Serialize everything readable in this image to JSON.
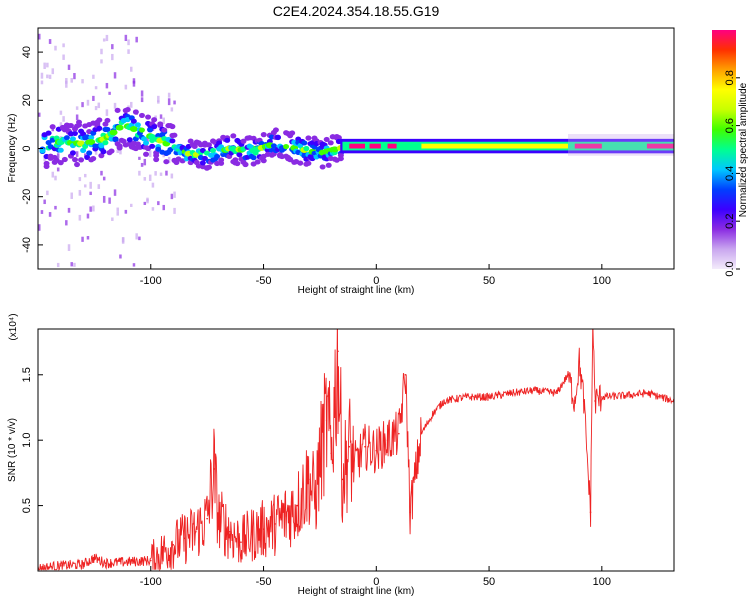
{
  "title": "C2E4.2024.354.18.55.G19",
  "chart_data": [
    {
      "type": "heatmap",
      "xlabel": "Height of straight line (km)",
      "ylabel": "Frequency (Hz)",
      "xlim": [
        -150,
        132
      ],
      "ylim": [
        -50,
        50
      ],
      "x_ticks": [
        -100,
        -50,
        0,
        50,
        100
      ],
      "y_ticks": [
        -40,
        -20,
        0,
        20,
        40
      ],
      "colorbar": {
        "label": "Normalized spectral amplitude",
        "range": [
          0,
          1
        ],
        "ticks": [
          0.0,
          0.2,
          0.4,
          0.6,
          0.8
        ],
        "colors": [
          "#f3ecfb",
          "#c9a6ef",
          "#8a2be2",
          "#3b00ff",
          "#0040ff",
          "#00c8ff",
          "#00ff90",
          "#40ff00",
          "#c8ff00",
          "#ffff00",
          "#ffa000",
          "#ff3000",
          "#ff0080"
        ]
      },
      "center_track": [
        {
          "x": -145,
          "freq": 3
        },
        {
          "x": -130,
          "freq": 2
        },
        {
          "x": -120,
          "freq": 4
        },
        {
          "x": -112,
          "freq": 10
        },
        {
          "x": -105,
          "freq": 7
        },
        {
          "x": -95,
          "freq": 3
        },
        {
          "x": -85,
          "freq": -2
        },
        {
          "x": -75,
          "freq": -3
        },
        {
          "x": -65,
          "freq": 0
        },
        {
          "x": -55,
          "freq": -1
        },
        {
          "x": -45,
          "freq": 2
        },
        {
          "x": -35,
          "freq": 0
        },
        {
          "x": -25,
          "freq": -2
        },
        {
          "x": -17,
          "freq": 0
        },
        {
          "x": -10,
          "freq": 1
        },
        {
          "x": 0,
          "freq": 0.5
        },
        {
          "x": 50,
          "freq": 1
        },
        {
          "x": 132,
          "freq": 1
        }
      ]
    },
    {
      "type": "line",
      "xlabel": "Height of straight line (km)",
      "ylabel": "SNR (10 * v/v)",
      "y_multiplier": "(x10⁴)",
      "xlim": [
        -150,
        132
      ],
      "ylim": [
        0,
        1.85
      ],
      "x_ticks": [
        -100,
        -50,
        0,
        50,
        100
      ],
      "y_ticks": [
        0.5,
        1.0,
        1.5
      ],
      "y_tick_labels": [
        "0.5",
        "1.0",
        "1.5"
      ],
      "color": "#ee2222",
      "series": [
        {
          "x": [
            -150,
            -140,
            -130,
            -125,
            -120,
            -110,
            -100,
            -95,
            -90,
            -85,
            -80,
            -75,
            -72,
            -70,
            -65,
            -60,
            -55,
            -50,
            -45,
            -40,
            -35,
            -30,
            -27,
            -25,
            -22,
            -20,
            -17,
            -15,
            -12,
            -10,
            -5,
            0,
            5,
            10,
            13,
            15,
            20,
            25,
            30,
            40,
            50,
            60,
            70,
            80,
            85,
            88,
            90,
            92,
            95,
            96,
            97,
            100,
            110,
            120,
            132
          ],
          "y": [
            0.02,
            0.04,
            0.05,
            0.1,
            0.06,
            0.07,
            0.08,
            0.14,
            0.2,
            0.25,
            0.3,
            0.4,
            0.78,
            0.4,
            0.3,
            0.22,
            0.28,
            0.32,
            0.36,
            0.42,
            0.5,
            0.7,
            0.55,
            0.85,
            1.15,
            0.9,
            1.68,
            0.7,
            0.95,
            0.8,
            0.95,
            0.92,
            1.0,
            1.05,
            1.5,
            0.45,
            1.05,
            1.2,
            1.3,
            1.33,
            1.33,
            1.36,
            1.38,
            1.36,
            1.5,
            1.3,
            1.6,
            1.3,
            0.45,
            1.9,
            1.3,
            1.33,
            1.34,
            1.36,
            1.3
          ]
        }
      ]
    }
  ]
}
